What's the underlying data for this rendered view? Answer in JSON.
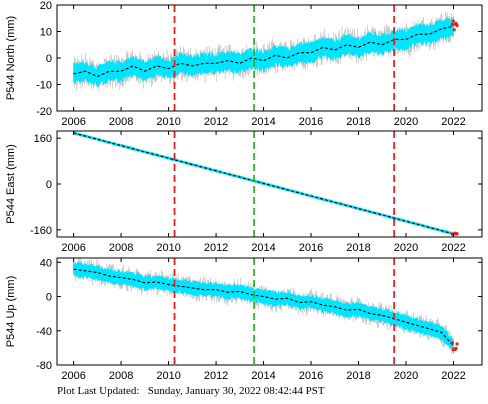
{
  "footer": {
    "label": "Plot Last Updated:",
    "timestamp": "Sunday, January 30, 2022 08:42:44 PST"
  },
  "colors": {
    "data_band": "#00e5ff",
    "error_bars": "#b0b0b0",
    "model_line": "#000000",
    "event_red": "#e52020",
    "event_green": "#2fb52f",
    "recent_points": "#e52020"
  },
  "chart_data": [
    {
      "type": "line",
      "ylabel": "P544 North (mm)",
      "xlim": [
        2005.3,
        2023.2
      ],
      "ylim": [
        -20,
        20
      ],
      "xticks": [
        2006,
        2008,
        2010,
        2012,
        2014,
        2016,
        2018,
        2020,
        2022
      ],
      "yticks": [
        -20,
        -10,
        0,
        10,
        20
      ],
      "grid": false,
      "event_lines": [
        {
          "x": 2010.25,
          "color": "red",
          "style": "dashed"
        },
        {
          "x": 2013.6,
          "color": "green",
          "style": "dashed"
        },
        {
          "x": 2019.5,
          "color": "red",
          "style": "dashed"
        }
      ],
      "series": [
        {
          "x": [
            2006.0,
            2006.5,
            2007.0,
            2007.5,
            2008.0,
            2008.5,
            2009.0,
            2009.5,
            2010.0,
            2010.5,
            2011.0,
            2011.5,
            2012.0,
            2012.5,
            2013.0,
            2013.5,
            2014.0,
            2014.5,
            2015.0,
            2015.5,
            2016.0,
            2016.5,
            2017.0,
            2017.5,
            2018.0,
            2018.5,
            2019.0,
            2019.5,
            2020.0,
            2020.5,
            2021.0,
            2021.5,
            2022.0
          ],
          "values": [
            -6,
            -5,
            -7,
            -5,
            -5,
            -3,
            -5,
            -3,
            -4,
            -2,
            -3,
            -2,
            -2,
            -1,
            -2,
            0,
            -1,
            1,
            0,
            2,
            2,
            4,
            3,
            5,
            4,
            6,
            5,
            7,
            7,
            9,
            9,
            11,
            12
          ]
        }
      ],
      "band_halfwidth": 3.2
    },
    {
      "type": "line",
      "ylabel": "P544 East (mm)",
      "xlim": [
        2005.3,
        2023.2
      ],
      "ylim": [
        -185,
        185
      ],
      "xticks": [
        2006,
        2008,
        2010,
        2012,
        2014,
        2016,
        2018,
        2020,
        2022
      ],
      "yticks": [
        -160,
        0,
        160
      ],
      "grid": false,
      "event_lines": [
        {
          "x": 2010.25,
          "color": "red",
          "style": "dashed"
        },
        {
          "x": 2013.6,
          "color": "green",
          "style": "dashed"
        },
        {
          "x": 2019.5,
          "color": "red",
          "style": "dashed"
        }
      ],
      "series": [
        {
          "x": [
            2006.0,
            2008.0,
            2010.0,
            2012.0,
            2014.0,
            2016.0,
            2018.0,
            2020.0,
            2022.0
          ],
          "values": [
            178,
            134,
            90,
            46,
            2,
            -42,
            -86,
            -130,
            -174
          ]
        }
      ],
      "band_halfwidth": 3.5
    },
    {
      "type": "line",
      "ylabel": "P544 Up (mm)",
      "xlim": [
        2005.3,
        2023.2
      ],
      "ylim": [
        -80,
        45
      ],
      "xticks": [
        2006,
        2008,
        2010,
        2012,
        2014,
        2016,
        2018,
        2020,
        2022
      ],
      "yticks": [
        -80,
        -40,
        0,
        40
      ],
      "grid": false,
      "event_lines": [
        {
          "x": 2010.25,
          "color": "red",
          "style": "dashed"
        },
        {
          "x": 2013.6,
          "color": "green",
          "style": "dashed"
        },
        {
          "x": 2019.5,
          "color": "red",
          "style": "dashed"
        }
      ],
      "series": [
        {
          "x": [
            2006.0,
            2006.5,
            2007.0,
            2007.5,
            2008.0,
            2008.5,
            2009.0,
            2009.5,
            2010.0,
            2010.5,
            2011.0,
            2011.5,
            2012.0,
            2012.5,
            2013.0,
            2013.5,
            2014.0,
            2014.5,
            2015.0,
            2015.5,
            2016.0,
            2016.5,
            2017.0,
            2017.5,
            2018.0,
            2018.5,
            2019.0,
            2019.5,
            2020.0,
            2020.5,
            2021.0,
            2021.5,
            2022.0
          ],
          "values": [
            32,
            30,
            28,
            24,
            22,
            20,
            16,
            17,
            14,
            12,
            10,
            8,
            8,
            5,
            6,
            2,
            0,
            -3,
            -2,
            -7,
            -6,
            -10,
            -12,
            -16,
            -15,
            -20,
            -22,
            -26,
            -30,
            -34,
            -38,
            -42,
            -58
          ]
        }
      ],
      "band_halfwidth": 7
    }
  ]
}
